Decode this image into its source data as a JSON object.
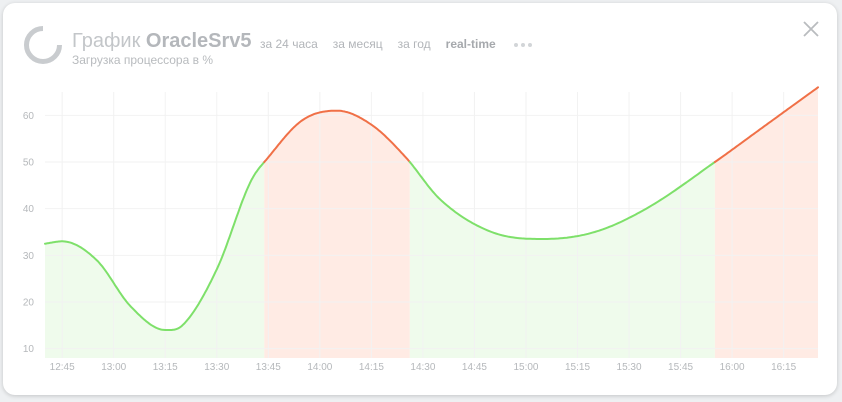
{
  "header": {
    "title_prefix": "График",
    "server_name": "OracleSrv5",
    "subtitle": "Загрузка процессора в %"
  },
  "tabs": [
    {
      "label": "за 24 часа",
      "active": false
    },
    {
      "label": "за месяц",
      "active": false
    },
    {
      "label": "за год",
      "active": false
    },
    {
      "label": "real-time",
      "active": true
    }
  ],
  "icons": {
    "logo": "ring-logo-icon",
    "more": "more-dots-icon",
    "close": "close-icon"
  },
  "colors": {
    "normal_line": "#7ee06a",
    "normal_fill": "#effbec",
    "high_line": "#f07047",
    "high_fill": "#ffebe4",
    "grid": "#f2f2f2"
  },
  "chart_data": {
    "type": "area",
    "title": "",
    "xlabel": "",
    "ylabel": "",
    "ylim": [
      8,
      68
    ],
    "yticks": [
      10,
      20,
      30,
      40,
      50,
      60
    ],
    "xticks": [
      "12:45",
      "13:00",
      "13:15",
      "13:30",
      "13:45",
      "14:00",
      "14:15",
      "14:30",
      "14:45",
      "15:00",
      "15:15",
      "15:30",
      "15:45",
      "16:00",
      "16:15"
    ],
    "xlim": [
      "12:40",
      "16:25"
    ],
    "threshold": 50,
    "grid": true,
    "series": [
      {
        "x": [
          "12:40",
          "12:45",
          "12:55",
          "13:05",
          "13:15",
          "13:20",
          "13:30",
          "13:40",
          "13:45",
          "13:55",
          "14:05",
          "14:15",
          "14:25",
          "14:35",
          "14:50",
          "15:05",
          "15:20",
          "15:35",
          "15:55",
          "16:10",
          "16:25"
        ],
        "values": [
          32.5,
          33,
          29,
          19,
          14,
          15,
          27,
          46,
          51,
          59,
          61,
          58,
          51,
          42,
          35,
          33.5,
          35,
          40,
          50,
          58,
          66
        ]
      }
    ]
  }
}
